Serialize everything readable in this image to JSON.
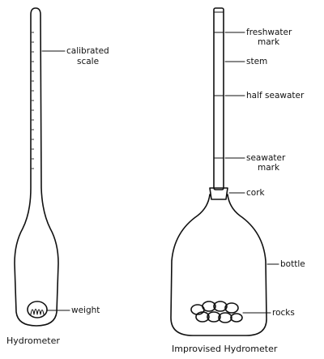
{
  "hydrometer": {
    "caption": "Hydrometer",
    "labels": {
      "scale_line1": "calibrated",
      "scale_line2": "scale",
      "weight": "weight"
    }
  },
  "improvised": {
    "caption": "Improvised Hydrometer",
    "labels": {
      "freshwater_line1": "freshwater",
      "freshwater_line2": "mark",
      "stem": "stem",
      "half_seawater": "half seawater",
      "seawater_line1": "seawater",
      "seawater_line2": "mark",
      "cork": "cork",
      "bottle": "bottle",
      "rocks": "rocks"
    }
  },
  "style": {
    "ink": "#111111"
  }
}
